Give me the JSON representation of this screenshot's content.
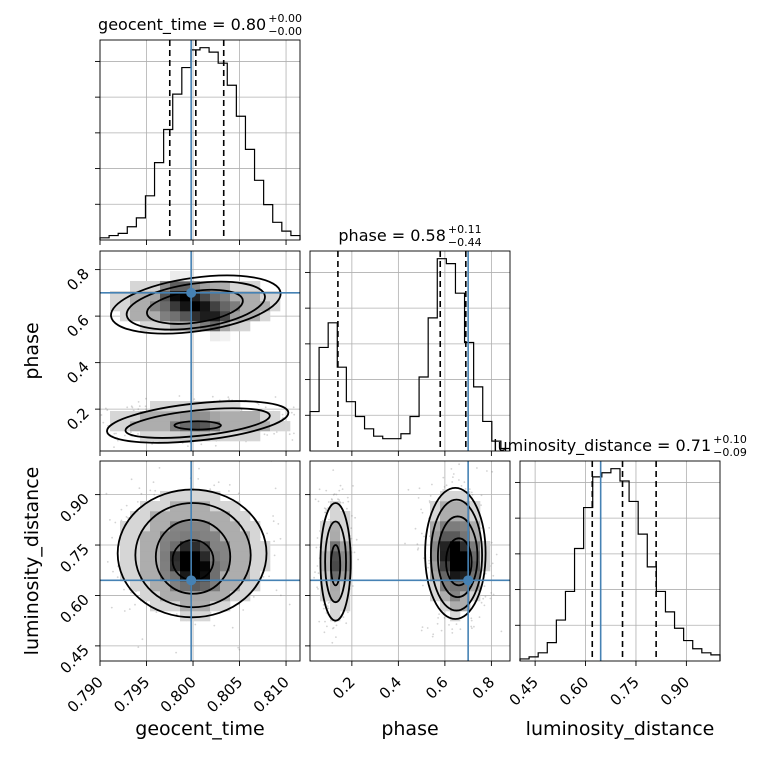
{
  "chart_data": {
    "type": "corner",
    "parameters": [
      "geocent_time",
      "phase",
      "luminosity_distance"
    ],
    "truths": {
      "geocent_time": 0.7998,
      "phase": 0.7,
      "luminosity_distance": 0.645
    },
    "ranges": {
      "geocent_time": [
        0.79,
        0.8115
      ],
      "phase": [
        0.02,
        0.88
      ],
      "luminosity_distance": [
        0.405,
        1.0
      ]
    },
    "ticks": {
      "geocent_time": [
        0.79,
        0.795,
        0.8,
        0.805,
        0.81
      ],
      "phase": [
        0.2,
        0.4,
        0.6,
        0.8
      ],
      "luminosity_distance": [
        0.45,
        0.6,
        0.75,
        0.9
      ]
    },
    "tick_labels": {
      "geocent_time": [
        "0.790",
        "0.795",
        "0.800",
        "0.805",
        "0.810"
      ],
      "phase": [
        "0.2",
        "0.4",
        "0.6",
        "0.8"
      ],
      "luminosity_distance": [
        "0.45",
        "0.60",
        "0.75",
        "0.90"
      ]
    },
    "quantiles": {
      "geocent_time": [
        0.7975,
        0.8003,
        0.8033
      ],
      "phase": [
        0.14,
        0.58,
        0.69
      ],
      "luminosity_distance": [
        0.62,
        0.71,
        0.81
      ]
    },
    "titles": [
      {
        "param": "geocent_time",
        "text": "geocent_time = 0.80",
        "sup": "+0.00",
        "sub": "−0.00"
      },
      {
        "param": "phase",
        "text": "phase = 0.58",
        "sup": "+0.11",
        "sub": "−0.44"
      },
      {
        "param": "luminosity_distance",
        "text": "luminosity_distance = 0.71",
        "sup": "+0.10",
        "sub": "−0.09"
      }
    ],
    "histograms": {
      "geocent_time": {
        "x0": 0.79,
        "x1": 0.8115,
        "counts": [
          1,
          2,
          3,
          6,
          10,
          20,
          35,
          50,
          66,
          78,
          86,
          87,
          85,
          80,
          70,
          56,
          41,
          27,
          16,
          8,
          4,
          2
        ]
      },
      "phase": {
        "x0": 0.02,
        "x1": 0.88,
        "counts": [
          16,
          42,
          52,
          34,
          20,
          14,
          9,
          6,
          5,
          5,
          7,
          14,
          30,
          54,
          78,
          76,
          64,
          44,
          26,
          12,
          4,
          1
        ]
      },
      "luminosity_distance": {
        "x0": 0.405,
        "x1": 1.0,
        "counts": [
          1,
          2,
          4,
          9,
          20,
          34,
          55,
          75,
          90,
          92,
          94,
          88,
          78,
          62,
          46,
          34,
          24,
          16,
          10,
          6,
          4,
          3
        ]
      }
    },
    "contours": {
      "phase_vs_geocent_time": [
        {
          "cx": 0.8002,
          "cy": 0.64,
          "rx": 0.0052,
          "ry": 0.068,
          "tilt": -8
        },
        {
          "cx": 0.8003,
          "cy": 0.645,
          "rx": 0.0075,
          "ry": 0.095,
          "tilt": -8
        },
        {
          "cx": 0.8003,
          "cy": 0.65,
          "rx": 0.0092,
          "ry": 0.115,
          "tilt": -8
        },
        {
          "cx": 0.8005,
          "cy": 0.13,
          "rx": 0.0025,
          "ry": 0.018,
          "tilt": 0
        },
        {
          "cx": 0.8005,
          "cy": 0.14,
          "rx": 0.0078,
          "ry": 0.055,
          "tilt": -6
        },
        {
          "cx": 0.8005,
          "cy": 0.145,
          "rx": 0.0098,
          "ry": 0.08,
          "tilt": -6
        }
      ],
      "luminosity_distance_vs_geocent_time": [
        {
          "cx": 0.8,
          "cy": 0.705,
          "rx": 0.0022,
          "ry": 0.06,
          "tilt": 0
        },
        {
          "cx": 0.8,
          "cy": 0.715,
          "rx": 0.004,
          "ry": 0.11,
          "tilt": 0
        },
        {
          "cx": 0.8,
          "cy": 0.72,
          "rx": 0.0062,
          "ry": 0.155,
          "tilt": 0
        },
        {
          "cx": 0.7999,
          "cy": 0.725,
          "rx": 0.008,
          "ry": 0.19,
          "tilt": 0
        }
      ],
      "luminosity_distance_vs_phase": [
        {
          "cx": 0.66,
          "cy": 0.7,
          "rx": 0.055,
          "ry": 0.07,
          "tilt": 0
        },
        {
          "cx": 0.655,
          "cy": 0.715,
          "rx": 0.085,
          "ry": 0.12,
          "tilt": 0
        },
        {
          "cx": 0.65,
          "cy": 0.72,
          "rx": 0.11,
          "ry": 0.165,
          "tilt": 0
        },
        {
          "cx": 0.645,
          "cy": 0.725,
          "rx": 0.13,
          "ry": 0.195,
          "tilt": 0
        },
        {
          "cx": 0.13,
          "cy": 0.69,
          "rx": 0.02,
          "ry": 0.06,
          "tilt": 0
        },
        {
          "cx": 0.13,
          "cy": 0.7,
          "rx": 0.045,
          "ry": 0.12,
          "tilt": 0
        },
        {
          "cx": 0.13,
          "cy": 0.7,
          "rx": 0.065,
          "ry": 0.175,
          "tilt": 0
        }
      ]
    },
    "density_peaks": {
      "phase_vs_geocent_time": [
        {
          "x": 0.7985,
          "y": 0.69,
          "w": 1.0
        },
        {
          "x": 0.8005,
          "y": 0.64,
          "w": 0.9
        },
        {
          "x": 0.8025,
          "y": 0.59,
          "w": 0.7
        },
        {
          "x": 0.8005,
          "y": 0.13,
          "w": 0.45
        }
      ],
      "luminosity_distance_vs_geocent_time": [
        {
          "x": 0.7995,
          "y": 0.71,
          "w": 0.9
        },
        {
          "x": 0.8005,
          "y": 0.67,
          "w": 0.8
        }
      ],
      "luminosity_distance_vs_phase": [
        {
          "x": 0.66,
          "y": 0.69,
          "w": 1.0
        },
        {
          "x": 0.62,
          "y": 0.74,
          "w": 0.8
        },
        {
          "x": 0.13,
          "y": 0.7,
          "w": 0.5
        }
      ]
    },
    "grid": true
  }
}
